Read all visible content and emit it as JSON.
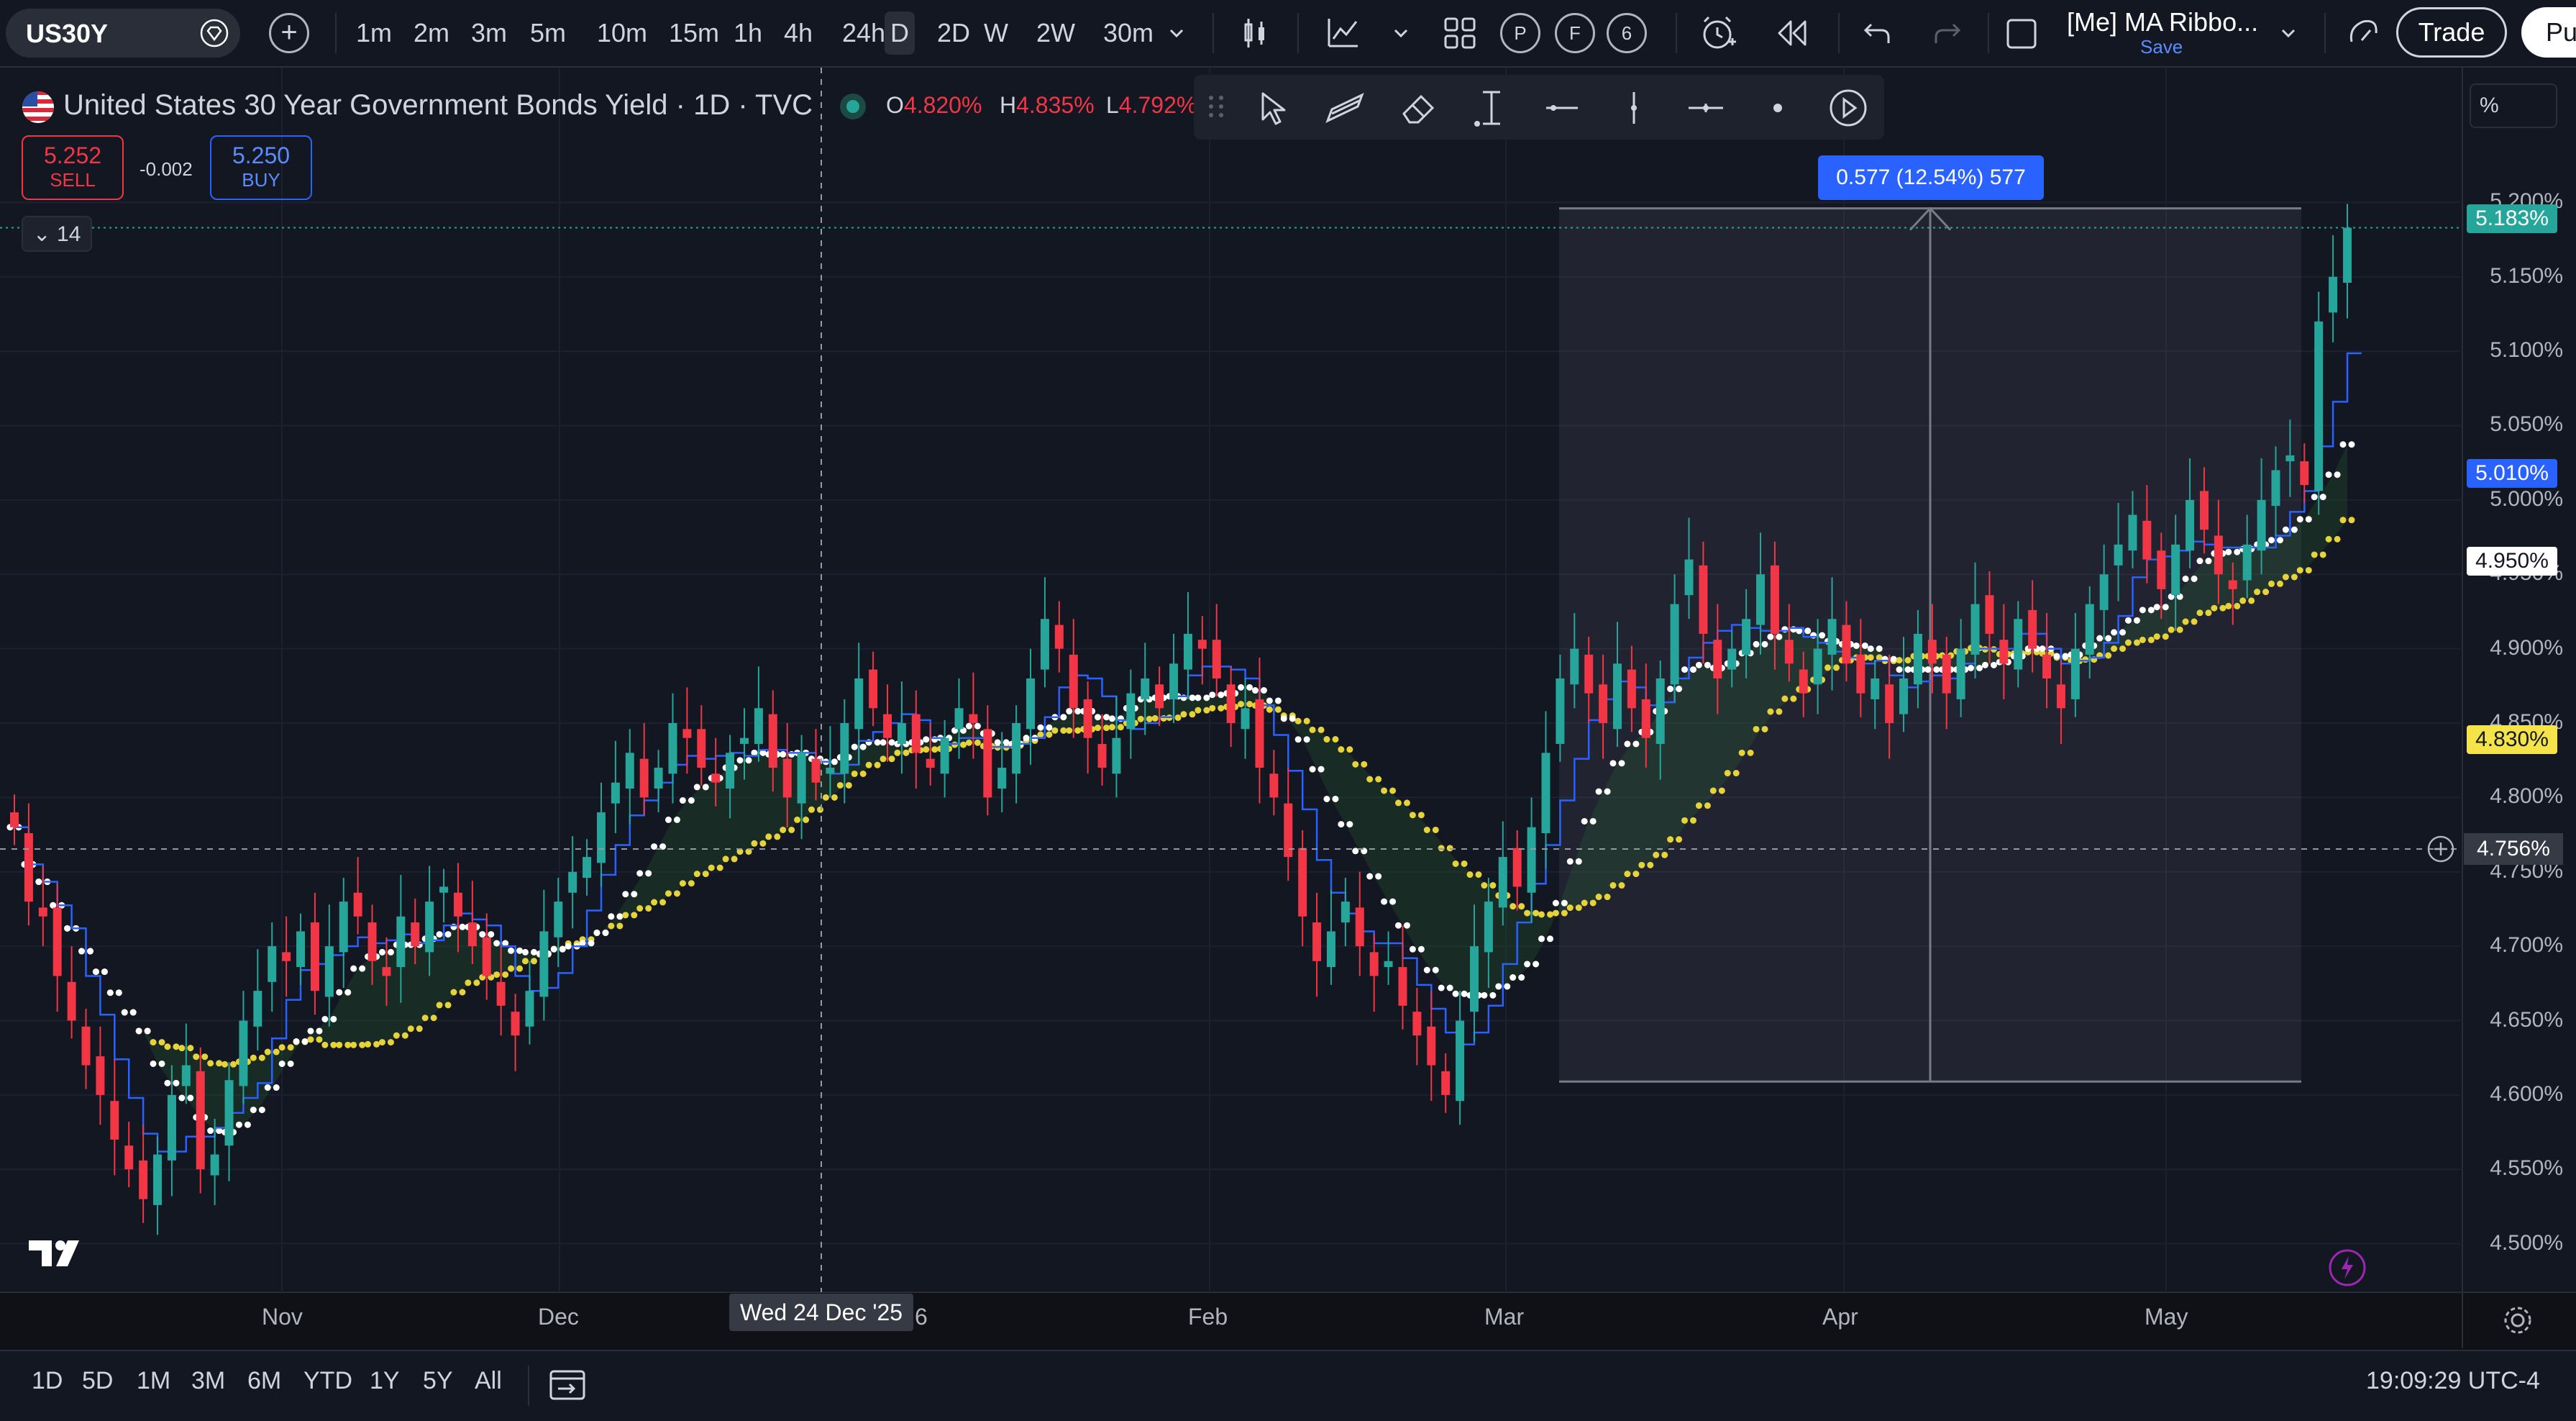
{
  "topbar": {
    "symbol": "US30Y",
    "intervals": [
      "1m",
      "2m",
      "3m",
      "5m",
      "10m",
      "15m",
      "1h",
      "4h",
      "24h",
      "D",
      "2D",
      "W",
      "2W",
      "30m"
    ],
    "active_interval": "D",
    "p_label": "P",
    "f_label": "F",
    "six_label": "6",
    "layout_name": "[Me] MA Ribbo...",
    "save_label": "Save",
    "trade_label": "Trade",
    "publish_label": "Pu"
  },
  "legend": {
    "title": "United States 30 Year Government Bonds Yield · 1D · TVC",
    "o_label": "O",
    "o_value": "4.820%",
    "h_label": "H",
    "h_value": "4.835%",
    "l_label": "L",
    "l_value": "4.792%",
    "sell_price": "5.252",
    "sell_label": "SELL",
    "buy_price": "5.250",
    "buy_label": "BUY",
    "spread": "-0.002",
    "indicator_count": "14"
  },
  "measure": {
    "label": "0.577 (12.54%) 577"
  },
  "price_axis": {
    "unit_label": "%",
    "ticks": [
      "5.200%",
      "5.150%",
      "5.100%",
      "5.050%",
      "5.000%",
      "4.950%",
      "4.900%",
      "4.850%",
      "4.800%",
      "4.750%",
      "4.700%",
      "4.650%",
      "4.600%",
      "4.550%",
      "4.500%"
    ],
    "last_price": "5.183%",
    "ma_blue": "5.010%",
    "ma_white": "4.950%",
    "ma_yellow": "4.830%",
    "crosshair_price": "4.756%"
  },
  "time_axis": {
    "labels": [
      "Nov",
      "Dec",
      "Feb",
      "Mar",
      "Apr",
      "May"
    ],
    "crosshair_date": "Wed 24 Dec '25",
    "partial_label": "6"
  },
  "bottombar": {
    "ranges": [
      "1D",
      "5D",
      "1M",
      "3M",
      "6M",
      "YTD",
      "1Y",
      "5Y",
      "All"
    ],
    "clock": "19:09:29 UTC-4"
  },
  "colors": {
    "up": "#26a69a",
    "down": "#f23645",
    "ma_line": "#2962ff",
    "ribbon_fast": "#ffffff",
    "ribbon_slow": "#e6d23a",
    "background": "#131722"
  },
  "chart_data": {
    "type": "candlestick",
    "ylim": [
      4.48,
      5.22
    ],
    "candles_close": [
      4.78,
      4.73,
      4.72,
      4.68,
      4.65,
      4.62,
      4.6,
      4.57,
      4.55,
      4.53,
      4.56,
      4.6,
      4.62,
      4.55,
      4.56,
      4.61,
      4.65,
      4.67,
      4.7,
      4.69,
      4.71,
      4.67,
      4.7,
      4.73,
      4.72,
      4.69,
      4.68,
      4.72,
      4.7,
      4.73,
      4.74,
      4.72,
      4.7,
      4.68,
      4.66,
      4.64,
      4.67,
      4.71,
      4.73,
      4.75,
      4.76,
      4.79,
      4.81,
      4.83,
      4.8,
      4.82,
      4.85,
      4.84,
      4.82,
      4.81,
      4.83,
      4.84,
      4.86,
      4.82,
      4.8,
      4.83,
      4.81,
      4.82,
      4.85,
      4.88,
      4.86,
      4.84,
      4.85,
      4.83,
      4.82,
      4.84,
      4.86,
      4.85,
      4.8,
      4.82,
      4.85,
      4.88,
      4.92,
      4.9,
      4.86,
      4.84,
      4.82,
      4.84,
      4.87,
      4.88,
      4.86,
      4.89,
      4.91,
      4.9,
      4.88,
      4.85,
      4.86,
      4.82,
      4.8,
      4.76,
      4.72,
      4.69,
      4.71,
      4.73,
      4.7,
      4.68,
      4.69,
      4.66,
      4.64,
      4.62,
      4.6,
      4.65,
      4.7,
      4.73,
      4.76,
      4.74,
      4.78,
      4.83,
      4.88,
      4.9,
      4.87,
      4.85,
      4.89,
      4.86,
      4.84,
      4.88,
      4.93,
      4.96,
      4.91,
      4.88,
      4.9,
      4.92,
      4.95,
      4.91,
      4.89,
      4.87,
      4.9,
      4.92,
      4.89,
      4.87,
      4.88,
      4.85,
      4.88,
      4.91,
      4.89,
      4.87,
      4.9,
      4.93,
      4.91,
      4.89,
      4.92,
      4.9,
      4.88,
      4.86,
      4.9,
      4.93,
      4.95,
      4.97,
      4.99,
      4.96,
      4.94,
      4.97,
      5.0,
      4.98,
      4.95,
      4.94,
      4.97,
      5.0,
      5.02,
      5.03,
      5.01,
      5.12,
      5.15,
      5.183
    ]
  }
}
